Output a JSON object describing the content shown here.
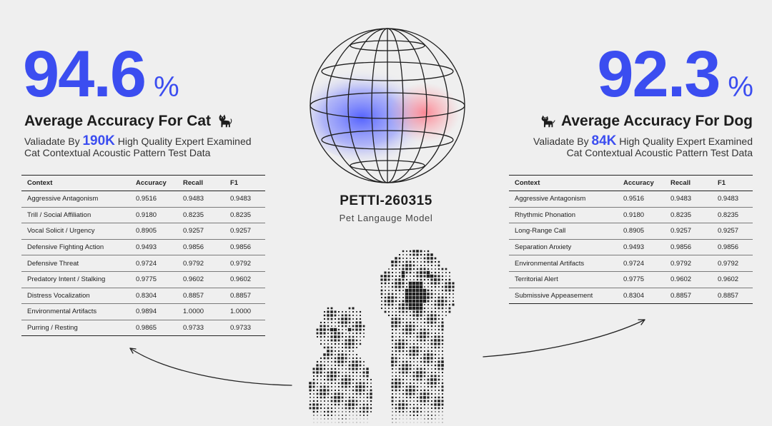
{
  "cat": {
    "accuracy_value": "94.6",
    "percent_sign": "%",
    "heading": "Average Accuracy For Cat",
    "icon": "cat-icon",
    "validated_prefix": "Valiadate By ",
    "validated_count": "190K",
    "validated_suffix": " High Quality Expert Examined",
    "validated_line2": "Cat Contextual Acoustic Pattern Test Data",
    "table": {
      "headers": [
        "Context",
        "Accuracy",
        "Recall",
        "F1"
      ],
      "rows": [
        [
          "Aggressive Antagonism",
          "0.9516",
          "0.9483",
          "0.9483"
        ],
        [
          "Trill / Social Affiliation",
          "0.9180",
          "0.8235",
          "0.8235"
        ],
        [
          "Vocal Solicit / Urgency",
          "0.8905",
          "0.9257",
          "0.9257"
        ],
        [
          "Defensive Fighting Action",
          "0.9493",
          "0.9856",
          "0.9856"
        ],
        [
          "Defensive Threat",
          "0.9724",
          "0.9792",
          "0.9792"
        ],
        [
          "Predatory Intent / Stalking",
          "0.9775",
          "0.9602",
          "0.9602"
        ],
        [
          "Distress Vocalization",
          "0.8304",
          "0.8857",
          "0.8857"
        ],
        [
          "Environmental Artifacts",
          "0.9894",
          "1.0000",
          "1.0000"
        ],
        [
          "Purring / Resting",
          "0.9865",
          "0.9733",
          "0.9733"
        ]
      ]
    }
  },
  "dog": {
    "accuracy_value": "92.3",
    "percent_sign": "%",
    "heading": "Average Accuracy For Dog",
    "icon": "dog-icon",
    "validated_prefix": "Valiadate By ",
    "validated_count": "84K",
    "validated_suffix": " High Quality Expert Examined",
    "validated_line2": "Cat Contextual Acoustic Pattern Test Data",
    "table": {
      "headers": [
        "Context",
        "Accuracy",
        "Recall",
        "F1"
      ],
      "rows": [
        [
          "Aggressive Antagonism",
          "0.9516",
          "0.9483",
          "0.9483"
        ],
        [
          "Rhythmic Phonation",
          "0.9180",
          "0.8235",
          "0.8235"
        ],
        [
          "Long-Range Call",
          "0.8905",
          "0.9257",
          "0.9257"
        ],
        [
          "Separation Anxiety",
          "0.9493",
          "0.9856",
          "0.9856"
        ],
        [
          "Environmental Artifacts",
          "0.9724",
          "0.9792",
          "0.9792"
        ],
        [
          "Territorial Alert",
          "0.9775",
          "0.9602",
          "0.9602"
        ],
        [
          "Submissive Appeasement",
          "0.8304",
          "0.8857",
          "0.8857"
        ]
      ]
    }
  },
  "model": {
    "name": "PETTI-260315",
    "subtitle": "Pet Langauge Model",
    "globe_icon": "wireframe-globe",
    "pets_image": "halftone-cat-and-dog"
  },
  "colors": {
    "accent": "#3b4df0",
    "background": "#efefef",
    "text": "#1d1d1d",
    "globe_glow_blue": "#5a6bff",
    "globe_glow_red": "#ff7c8a"
  }
}
